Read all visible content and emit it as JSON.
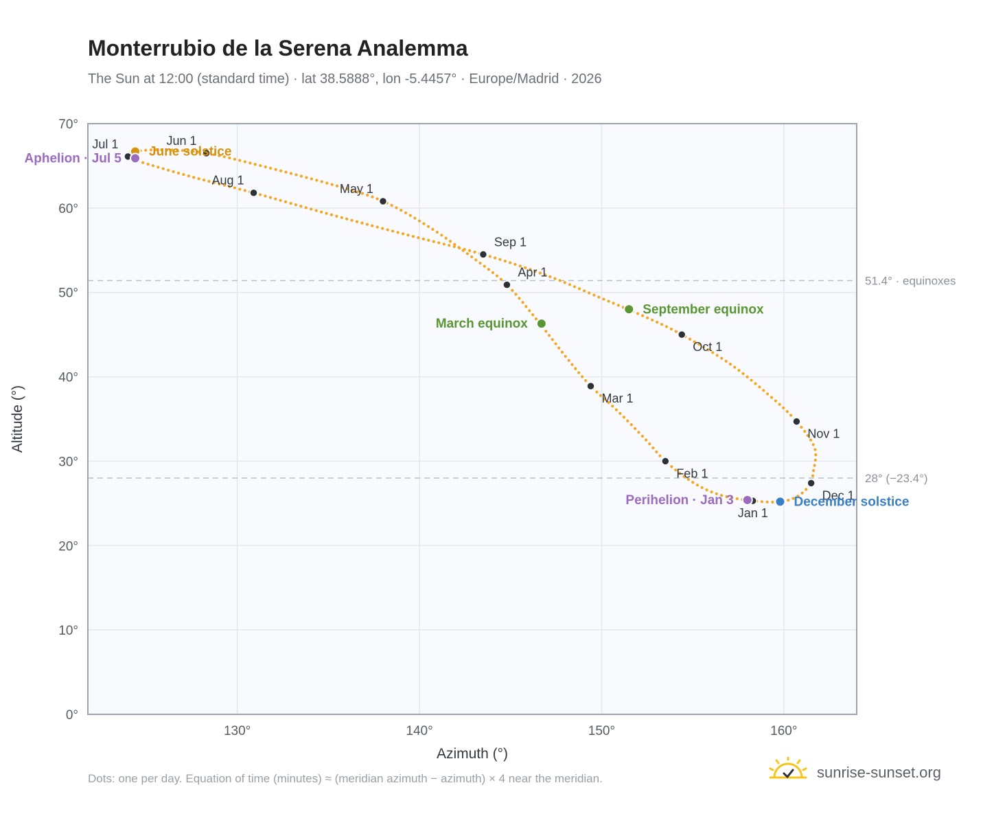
{
  "title": "Monterrubio de la Serena Analemma",
  "subtitle": "The Sun at 12:00 (standard time) · lat 38.5888°, lon -5.4457° · Europe/Madrid · 2026",
  "footnote": "Dots: one per day. Equation of time (minutes) ≈ (meridian azimuth − azimuth) × 4 near the meridian.",
  "brand": {
    "name": "sunrise-sunset.org",
    "icon": "sun-logo-icon"
  },
  "colors": {
    "path": "#f5a623",
    "month_dot": "#2d3138",
    "solstice_june": "#d4920f",
    "solstice_december": "#3a7ec4",
    "equinox": "#5a9634",
    "apsis": "#9b6bc0",
    "plot_bg": "#f8fafd",
    "grid": "#e3e7ee",
    "reference_line": "#b5bfca"
  },
  "chart_data": {
    "type": "scatter",
    "title": "Monterrubio de la Serena Analemma",
    "xlabel": "Azimuth (°)",
    "ylabel": "Altitude (°)",
    "xlim": [
      121.8,
      164.0
    ],
    "ylim": [
      0,
      70
    ],
    "x_ticks": [
      {
        "value": 130,
        "label": "130°"
      },
      {
        "value": 140,
        "label": "140°"
      },
      {
        "value": 150,
        "label": "150°"
      },
      {
        "value": 160,
        "label": "160°"
      }
    ],
    "y_ticks": [
      {
        "value": 0,
        "label": "0°"
      },
      {
        "value": 10,
        "label": "10°"
      },
      {
        "value": 20,
        "label": "20°"
      },
      {
        "value": 30,
        "label": "30°"
      },
      {
        "value": 40,
        "label": "40°"
      },
      {
        "value": 50,
        "label": "50°"
      },
      {
        "value": 60,
        "label": "60°"
      },
      {
        "value": 70,
        "label": "70°"
      }
    ],
    "grid": true,
    "reference_lines": [
      {
        "y": 51.4,
        "label": "51.4° · equinoxes"
      },
      {
        "y": 28.0,
        "label": "28° (−23.4°)"
      }
    ],
    "month_points": [
      {
        "label": "Jan 1",
        "x": 158.3,
        "y": 25.3,
        "pos": "below"
      },
      {
        "label": "Feb 1",
        "x": 153.5,
        "y": 30.0,
        "pos": "below-right"
      },
      {
        "label": "Mar 1",
        "x": 149.4,
        "y": 38.9,
        "pos": "below-right"
      },
      {
        "label": "Apr 1",
        "x": 144.8,
        "y": 50.9,
        "pos": "above-right"
      },
      {
        "label": "May 1",
        "x": 138.0,
        "y": 60.8,
        "pos": "above-left"
      },
      {
        "label": "Jun 1",
        "x": 128.3,
        "y": 66.5,
        "pos": "above-left"
      },
      {
        "label": "Jul 1",
        "x": 124.0,
        "y": 66.1,
        "pos": "above-left"
      },
      {
        "label": "Aug 1",
        "x": 130.9,
        "y": 61.8,
        "pos": "above-left"
      },
      {
        "label": "Sep 1",
        "x": 143.5,
        "y": 54.5,
        "pos": "above-right"
      },
      {
        "label": "Oct 1",
        "x": 154.4,
        "y": 45.0,
        "pos": "below-right"
      },
      {
        "label": "Nov 1",
        "x": 160.7,
        "y": 34.7,
        "pos": "below-right"
      },
      {
        "label": "Dec 1",
        "x": 161.5,
        "y": 27.4,
        "pos": "below-right"
      }
    ],
    "events": [
      {
        "label": "June solstice",
        "x": 124.4,
        "y": 66.7,
        "kind": "solstice_june",
        "pos": "right"
      },
      {
        "label": "Aphelion · Jul 5",
        "x": 124.4,
        "y": 65.9,
        "kind": "apsis",
        "pos": "left"
      },
      {
        "label": "March equinox",
        "x": 146.7,
        "y": 46.3,
        "kind": "equinox",
        "pos": "left"
      },
      {
        "label": "September equinox",
        "x": 151.5,
        "y": 48.0,
        "kind": "equinox",
        "pos": "right"
      },
      {
        "label": "Perihelion · Jan 3",
        "x": 158.0,
        "y": 25.4,
        "kind": "apsis",
        "pos": "left"
      },
      {
        "label": "December solstice",
        "x": 159.8,
        "y": 25.2,
        "kind": "solstice_december",
        "pos": "right"
      }
    ],
    "analemma_path": [
      {
        "x": 158.3,
        "y": 25.3
      },
      {
        "x": 156.5,
        "y": 26.0
      },
      {
        "x": 155.0,
        "y": 27.5
      },
      {
        "x": 153.5,
        "y": 30.0
      },
      {
        "x": 152.4,
        "y": 32.6
      },
      {
        "x": 150.9,
        "y": 35.9
      },
      {
        "x": 149.4,
        "y": 38.9
      },
      {
        "x": 148.1,
        "y": 42.2
      },
      {
        "x": 146.5,
        "y": 46.6
      },
      {
        "x": 144.8,
        "y": 50.9
      },
      {
        "x": 143.0,
        "y": 54.0
      },
      {
        "x": 140.5,
        "y": 57.8
      },
      {
        "x": 138.0,
        "y": 60.8
      },
      {
        "x": 135.5,
        "y": 62.6
      },
      {
        "x": 131.5,
        "y": 64.9
      },
      {
        "x": 128.3,
        "y": 66.5
      },
      {
        "x": 126.0,
        "y": 66.9
      },
      {
        "x": 124.4,
        "y": 66.7
      },
      {
        "x": 124.0,
        "y": 66.1
      },
      {
        "x": 124.5,
        "y": 65.6
      },
      {
        "x": 127.5,
        "y": 63.7
      },
      {
        "x": 130.9,
        "y": 61.8
      },
      {
        "x": 135.0,
        "y": 59.3
      },
      {
        "x": 139.0,
        "y": 57.0
      },
      {
        "x": 143.5,
        "y": 54.5
      },
      {
        "x": 147.0,
        "y": 52.0
      },
      {
        "x": 150.0,
        "y": 49.3
      },
      {
        "x": 152.4,
        "y": 47.1
      },
      {
        "x": 154.4,
        "y": 45.0
      },
      {
        "x": 157.0,
        "y": 41.6
      },
      {
        "x": 159.2,
        "y": 37.8
      },
      {
        "x": 160.7,
        "y": 34.7
      },
      {
        "x": 161.7,
        "y": 31.5
      },
      {
        "x": 161.6,
        "y": 28.5
      },
      {
        "x": 161.5,
        "y": 27.4
      },
      {
        "x": 160.8,
        "y": 25.9
      },
      {
        "x": 159.8,
        "y": 25.2
      },
      {
        "x": 158.3,
        "y": 25.3
      }
    ]
  }
}
